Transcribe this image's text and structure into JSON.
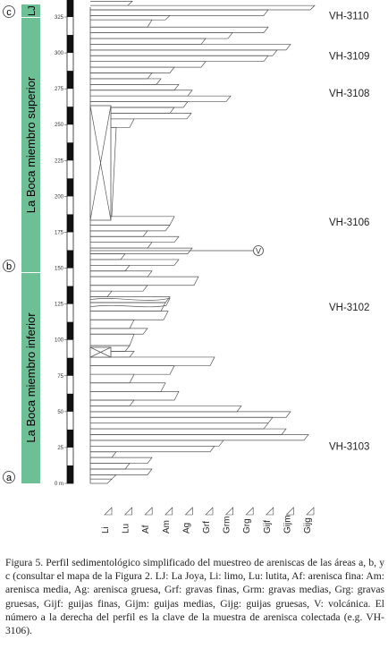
{
  "figure": {
    "section_labels": [
      "c",
      "b",
      "a"
    ],
    "formation_labels": {
      "lj": "LJ",
      "upper": "La Boca miembro superior",
      "lower": "La Boca miembro inferior"
    },
    "colors": {
      "formation_green": "#6dbf96",
      "line": "#555555"
    },
    "scale": {
      "ticks": [
        "0 m",
        "25",
        "50",
        "75",
        "100",
        "125",
        "150",
        "175",
        "200",
        "225",
        "250",
        "275",
        "300",
        "325"
      ],
      "max": 340,
      "unit": "m"
    },
    "grain_sizes": [
      "Li",
      "Lu",
      "Af",
      "Am",
      "Ag",
      "Grf",
      "Grm",
      "Grg",
      "Gijf",
      "Gijm",
      "Gijg"
    ],
    "samples": [
      {
        "label": "VH-3110",
        "height": 326
      },
      {
        "label": "VH-3109",
        "height": 298
      },
      {
        "label": "VH-3108",
        "height": 272
      },
      {
        "label": "VH-3106",
        "height": 182
      },
      {
        "label": "VH-3102",
        "height": 123
      },
      {
        "label": "VH-3103",
        "height": 26
      }
    ],
    "volcanic_symbol": "V"
  },
  "caption": {
    "text": "Figura 5. Perfil sedimentológico simplificado del muestreo de areniscas de las áreas a, b, y c (consultar el mapa de la Figura 2. LJ: La Joya, Li: limo, Lu: lutita, Af: arenisca fina: Am: arenisca media, Ag: arenisca gruesa, Grf: gravas finas, Grm: gravas medias, Grg: gravas gruesas, Gijf: guijas finas, Gijm: guijas medias, Gijg: guijas gruesas, V: volcánica. El número a la derecha del perfil es la clave de la muestra de arenisca colectada (e.g. VH-3106)."
  }
}
